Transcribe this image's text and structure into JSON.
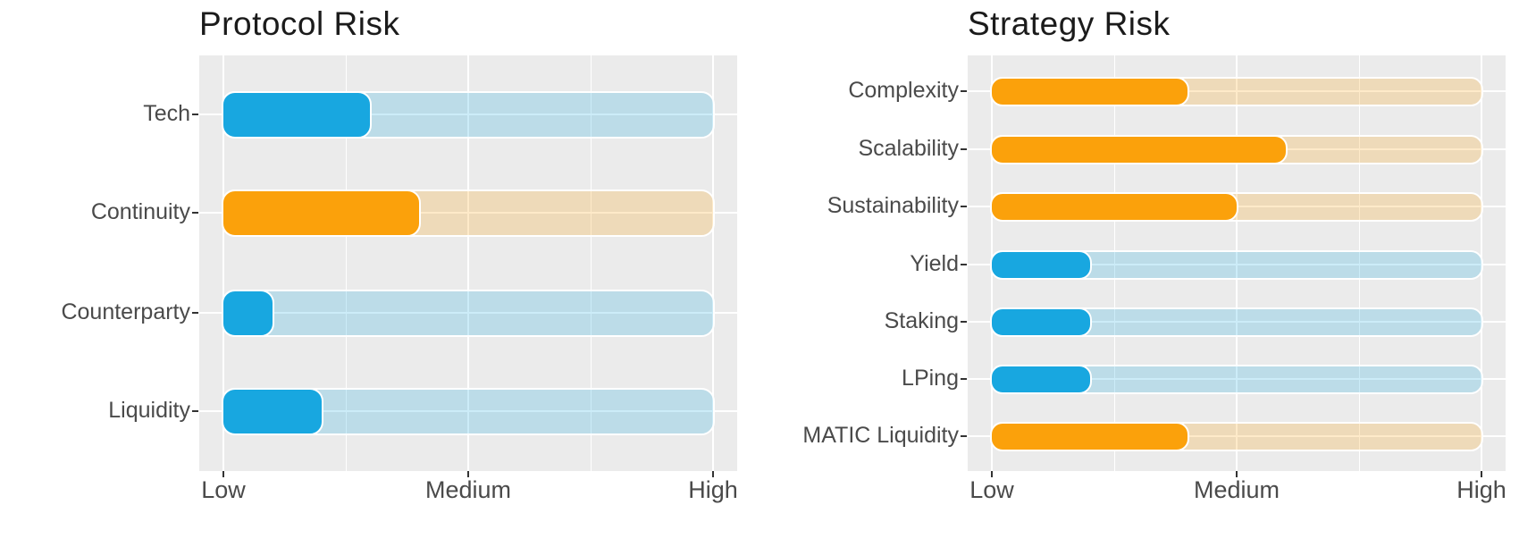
{
  "palette": {
    "blue": "#18A7E0",
    "orange": "#FBA10B",
    "track_alpha": 0.22,
    "panel_background": "#EBEBEB",
    "gridline": "#FFFFFF",
    "axis_text": "#4A4A4A",
    "title_text": "#1B1B1B",
    "tick_mark": "#333333"
  },
  "chart_data": [
    {
      "type": "bar",
      "orientation": "horizontal",
      "title": "Protocol Risk",
      "categories": [
        "Tech",
        "Continuity",
        "Counterparty",
        "Liquidity"
      ],
      "values": [
        0.3,
        0.4,
        0.1,
        0.2
      ],
      "bar_colors": [
        "blue",
        "orange",
        "blue",
        "blue"
      ],
      "track_value": 1.0,
      "xlabel": "",
      "ylabel": "",
      "x_tick_labels": [
        "Low",
        "Medium",
        "High"
      ],
      "x_tick_values": [
        0,
        0.5,
        1
      ],
      "xlim": [
        0,
        1
      ],
      "grid": "on",
      "legend": "none",
      "note": "rounded chicklet bars on translucent full-width tracks; gray panel, white gridlines"
    },
    {
      "type": "bar",
      "orientation": "horizontal",
      "title": "Strategy Risk",
      "categories": [
        "Complexity",
        "Scalability",
        "Sustainability",
        "Yield",
        "Staking",
        "LPing",
        "MATIC Liquidity"
      ],
      "values": [
        0.4,
        0.6,
        0.5,
        0.2,
        0.2,
        0.2,
        0.4
      ],
      "bar_colors": [
        "orange",
        "orange",
        "orange",
        "blue",
        "blue",
        "blue",
        "orange"
      ],
      "track_value": 1.0,
      "xlabel": "",
      "ylabel": "",
      "x_tick_labels": [
        "Low",
        "Medium",
        "High"
      ],
      "x_tick_values": [
        0,
        0.5,
        1
      ],
      "xlim": [
        0,
        1
      ],
      "grid": "on",
      "legend": "none",
      "note": "rounded chicklet bars on translucent full-width tracks; gray panel, white gridlines"
    }
  ]
}
